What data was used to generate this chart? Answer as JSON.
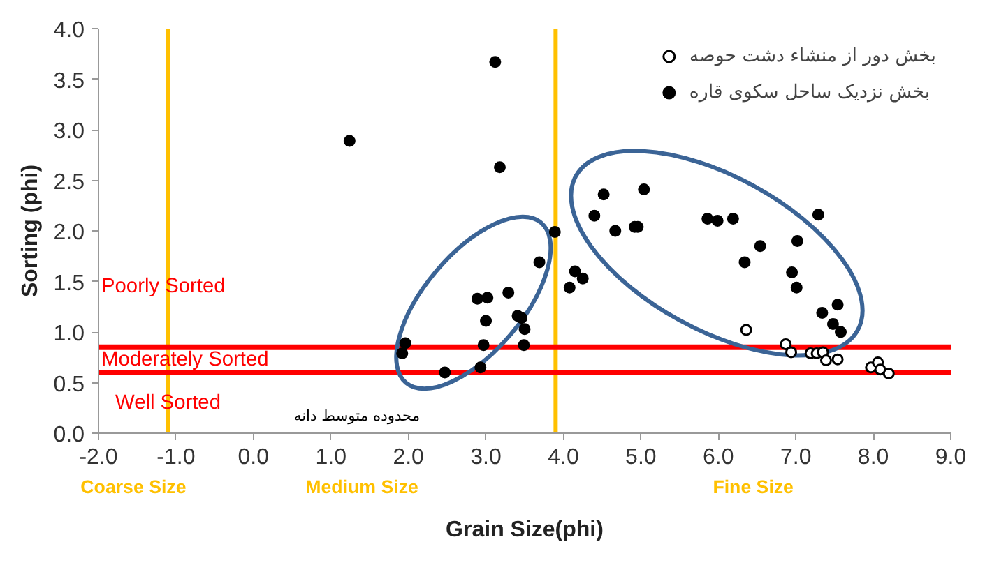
{
  "chart_data": {
    "type": "scatter",
    "xlabel": "Grain Size(phi)",
    "ylabel": "Sorting (phi)",
    "xlim": [
      -2,
      9
    ],
    "ylim": [
      0,
      4
    ],
    "xticks": [
      {
        "value": -2,
        "label": "-2.0"
      },
      {
        "value": -1,
        "label": "-1.0"
      },
      {
        "value": 0,
        "label": "0.0"
      },
      {
        "value": 1,
        "label": "1.0"
      },
      {
        "value": 2,
        "label": "2.0"
      },
      {
        "value": 3,
        "label": "3.0"
      },
      {
        "value": 4,
        "label": "4.0"
      },
      {
        "value": 5,
        "label": "5.0"
      },
      {
        "value": 6,
        "label": "6.0"
      },
      {
        "value": 7,
        "label": "7.0"
      },
      {
        "value": 8,
        "label": "8.0"
      },
      {
        "value": 9,
        "label": "9.0"
      }
    ],
    "yticks": [
      {
        "value": 0,
        "label": "0.0"
      },
      {
        "value": 0.5,
        "label": "0.5"
      },
      {
        "value": 1,
        "label": "1.0"
      },
      {
        "value": 1.5,
        "label": "1.5"
      },
      {
        "value": 2,
        "label": "2.0"
      },
      {
        "value": 2.5,
        "label": "2.5"
      },
      {
        "value": 3,
        "label": "3.0"
      },
      {
        "value": 3.5,
        "label": "3.5"
      },
      {
        "value": 4,
        "label": "4.0"
      }
    ],
    "grid": false,
    "legend": "top right",
    "marker": "circle",
    "series": [
      {
        "name": "بخش دور از منشاء دشت حوصه",
        "color": "#ffffff",
        "x": [
          6.36,
          6.87,
          6.94,
          7.19,
          7.27,
          7.35,
          7.39,
          7.54,
          7.97,
          8.06,
          8.09,
          8.2
        ],
        "values": [
          1.02,
          0.88,
          0.8,
          0.79,
          0.79,
          0.8,
          0.72,
          0.73,
          0.65,
          0.7,
          0.63,
          0.59
        ]
      },
      {
        "name": "بخش نزدیک ساحل سکوی قاره",
        "color": "#000000",
        "x": [
          1.24,
          3.12,
          3.18,
          3.69,
          3.89,
          3.29,
          2.89,
          3.02,
          3.0,
          3.41,
          3.46,
          3.5,
          2.97,
          3.49,
          1.96,
          1.92,
          2.47,
          2.93,
          4.08,
          4.15,
          4.25,
          4.4,
          4.52,
          4.67,
          4.92,
          4.96,
          5.04,
          5.86,
          5.99,
          6.19,
          6.54,
          6.34,
          7.29,
          7.02,
          6.95,
          7.01,
          7.54,
          7.34,
          7.48,
          7.58
        ],
        "values": [
          2.89,
          3.67,
          2.63,
          1.69,
          1.99,
          1.39,
          1.33,
          1.34,
          1.11,
          1.16,
          1.14,
          1.03,
          0.87,
          0.87,
          0.89,
          0.79,
          0.6,
          0.65,
          1.44,
          1.6,
          1.53,
          2.15,
          2.36,
          2.0,
          2.04,
          2.04,
          2.41,
          2.12,
          2.1,
          2.12,
          1.85,
          1.69,
          2.16,
          1.9,
          1.59,
          1.44,
          1.27,
          1.19,
          1.08,
          1.0
        ]
      }
    ],
    "ref_lines": [
      {
        "axis": "x",
        "value": -1.1,
        "color": "#ffc000"
      },
      {
        "axis": "x",
        "value": 3.9,
        "color": "#ffc000"
      },
      {
        "axis": "y",
        "value": 0.85,
        "color": "#ff0000"
      },
      {
        "axis": "y",
        "value": 0.6,
        "color": "#ff0000"
      }
    ],
    "annotations": [
      "Poorly Sorted",
      "Moderately Sorted",
      "Well Sorted",
      "محدوده متوسط دانه",
      "Coarse Size",
      "Medium Size",
      "Fine Size"
    ]
  }
}
